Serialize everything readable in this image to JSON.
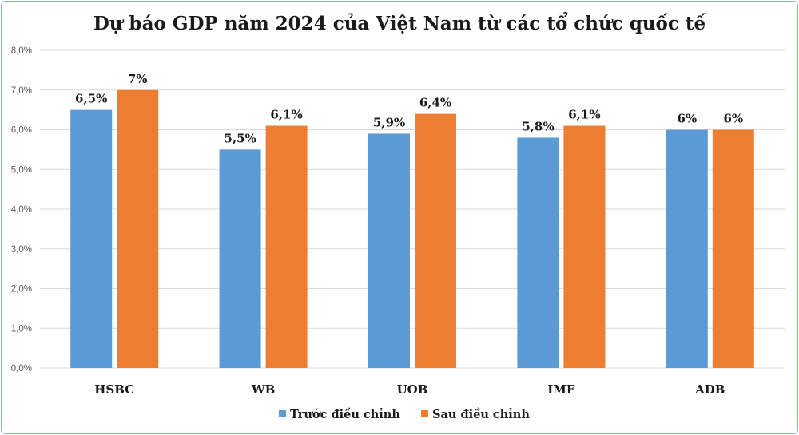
{
  "chart_data": {
    "type": "bar",
    "title": "Dự báo GDP năm 2024 của Việt Nam từ các tổ chức quốc tế",
    "categories": [
      "HSBC",
      "WB",
      "UOB",
      "IMF",
      "ADB"
    ],
    "series": [
      {
        "name": "Trước điều chỉnh",
        "color": "#5b9bd5",
        "values": [
          6.5,
          5.5,
          5.9,
          5.8,
          6.0
        ],
        "labels": [
          "6,5%",
          "5,5%",
          "5,9%",
          "5,8%",
          "6%"
        ]
      },
      {
        "name": "Sau điều chỉnh",
        "color": "#ed7d31",
        "values": [
          7.0,
          6.1,
          6.4,
          6.1,
          6.0
        ],
        "labels": [
          "7%",
          "6,1%",
          "6,4%",
          "6,1%",
          "6%"
        ]
      }
    ],
    "ylim": [
      0,
      8
    ],
    "yticks": [
      0,
      1,
      2,
      3,
      4,
      5,
      6,
      7,
      8
    ],
    "ytick_labels": [
      "0,0%",
      "1,0%",
      "2,0%",
      "3,0%",
      "4,0%",
      "5,0%",
      "6,0%",
      "7,0%",
      "8,0%"
    ],
    "grid": true,
    "legend_position": "bottom"
  }
}
